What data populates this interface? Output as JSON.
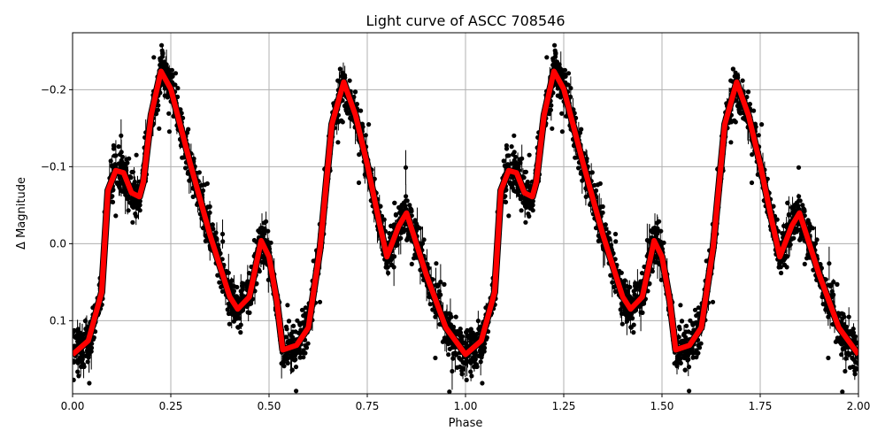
{
  "chart_data": {
    "type": "scatter",
    "title": "Light curve of ASCC 708546",
    "xlabel": "Phase",
    "ylabel": "Δ Magnitude",
    "xlim": [
      0.0,
      2.0
    ],
    "ylim": [
      0.195,
      -0.274
    ],
    "y_inverted": true,
    "grid": true,
    "x_ticks": [
      "0.00",
      "0.25",
      "0.50",
      "0.75",
      "1.00",
      "1.25",
      "1.50",
      "1.75",
      "2.00"
    ],
    "x_tick_values": [
      0,
      0.25,
      0.5,
      0.75,
      1.0,
      1.25,
      1.5,
      1.75,
      2.0
    ],
    "y_ticks": [
      "−0.2",
      "−0.1",
      "0.0",
      "0.1"
    ],
    "y_tick_values": [
      -0.2,
      -0.1,
      0.0,
      0.1
    ],
    "colors": {
      "observations": "#000000",
      "model": "#ff0000",
      "grid": "#b0b0b0"
    },
    "series": [
      {
        "kind": "observations with error bars",
        "style": "black dots",
        "period_repeated": true
      },
      {
        "kind": "model fit",
        "style": "thick red line",
        "phase": [
          0.0,
          0.04,
          0.074,
          0.09,
          0.11,
          0.13,
          0.15,
          0.17,
          0.18,
          0.2,
          0.225,
          0.25,
          0.3,
          0.35,
          0.4,
          0.42,
          0.45,
          0.48,
          0.5,
          0.52,
          0.535,
          0.57,
          0.6,
          0.63,
          0.66,
          0.69,
          0.72,
          0.75,
          0.78,
          0.8,
          0.83,
          0.85,
          0.875,
          0.9,
          0.95,
          1.0
        ],
        "magnitude": [
          0.144,
          0.126,
          0.063,
          -0.069,
          -0.095,
          -0.092,
          -0.066,
          -0.061,
          -0.08,
          -0.167,
          -0.224,
          -0.201,
          -0.103,
          -0.011,
          0.069,
          0.085,
          0.069,
          -0.004,
          0.017,
          0.075,
          0.138,
          0.132,
          0.109,
          0.006,
          -0.155,
          -0.21,
          -0.167,
          -0.103,
          -0.029,
          0.017,
          -0.023,
          -0.04,
          0.0,
          0.04,
          0.109,
          0.144
        ]
      }
    ]
  }
}
